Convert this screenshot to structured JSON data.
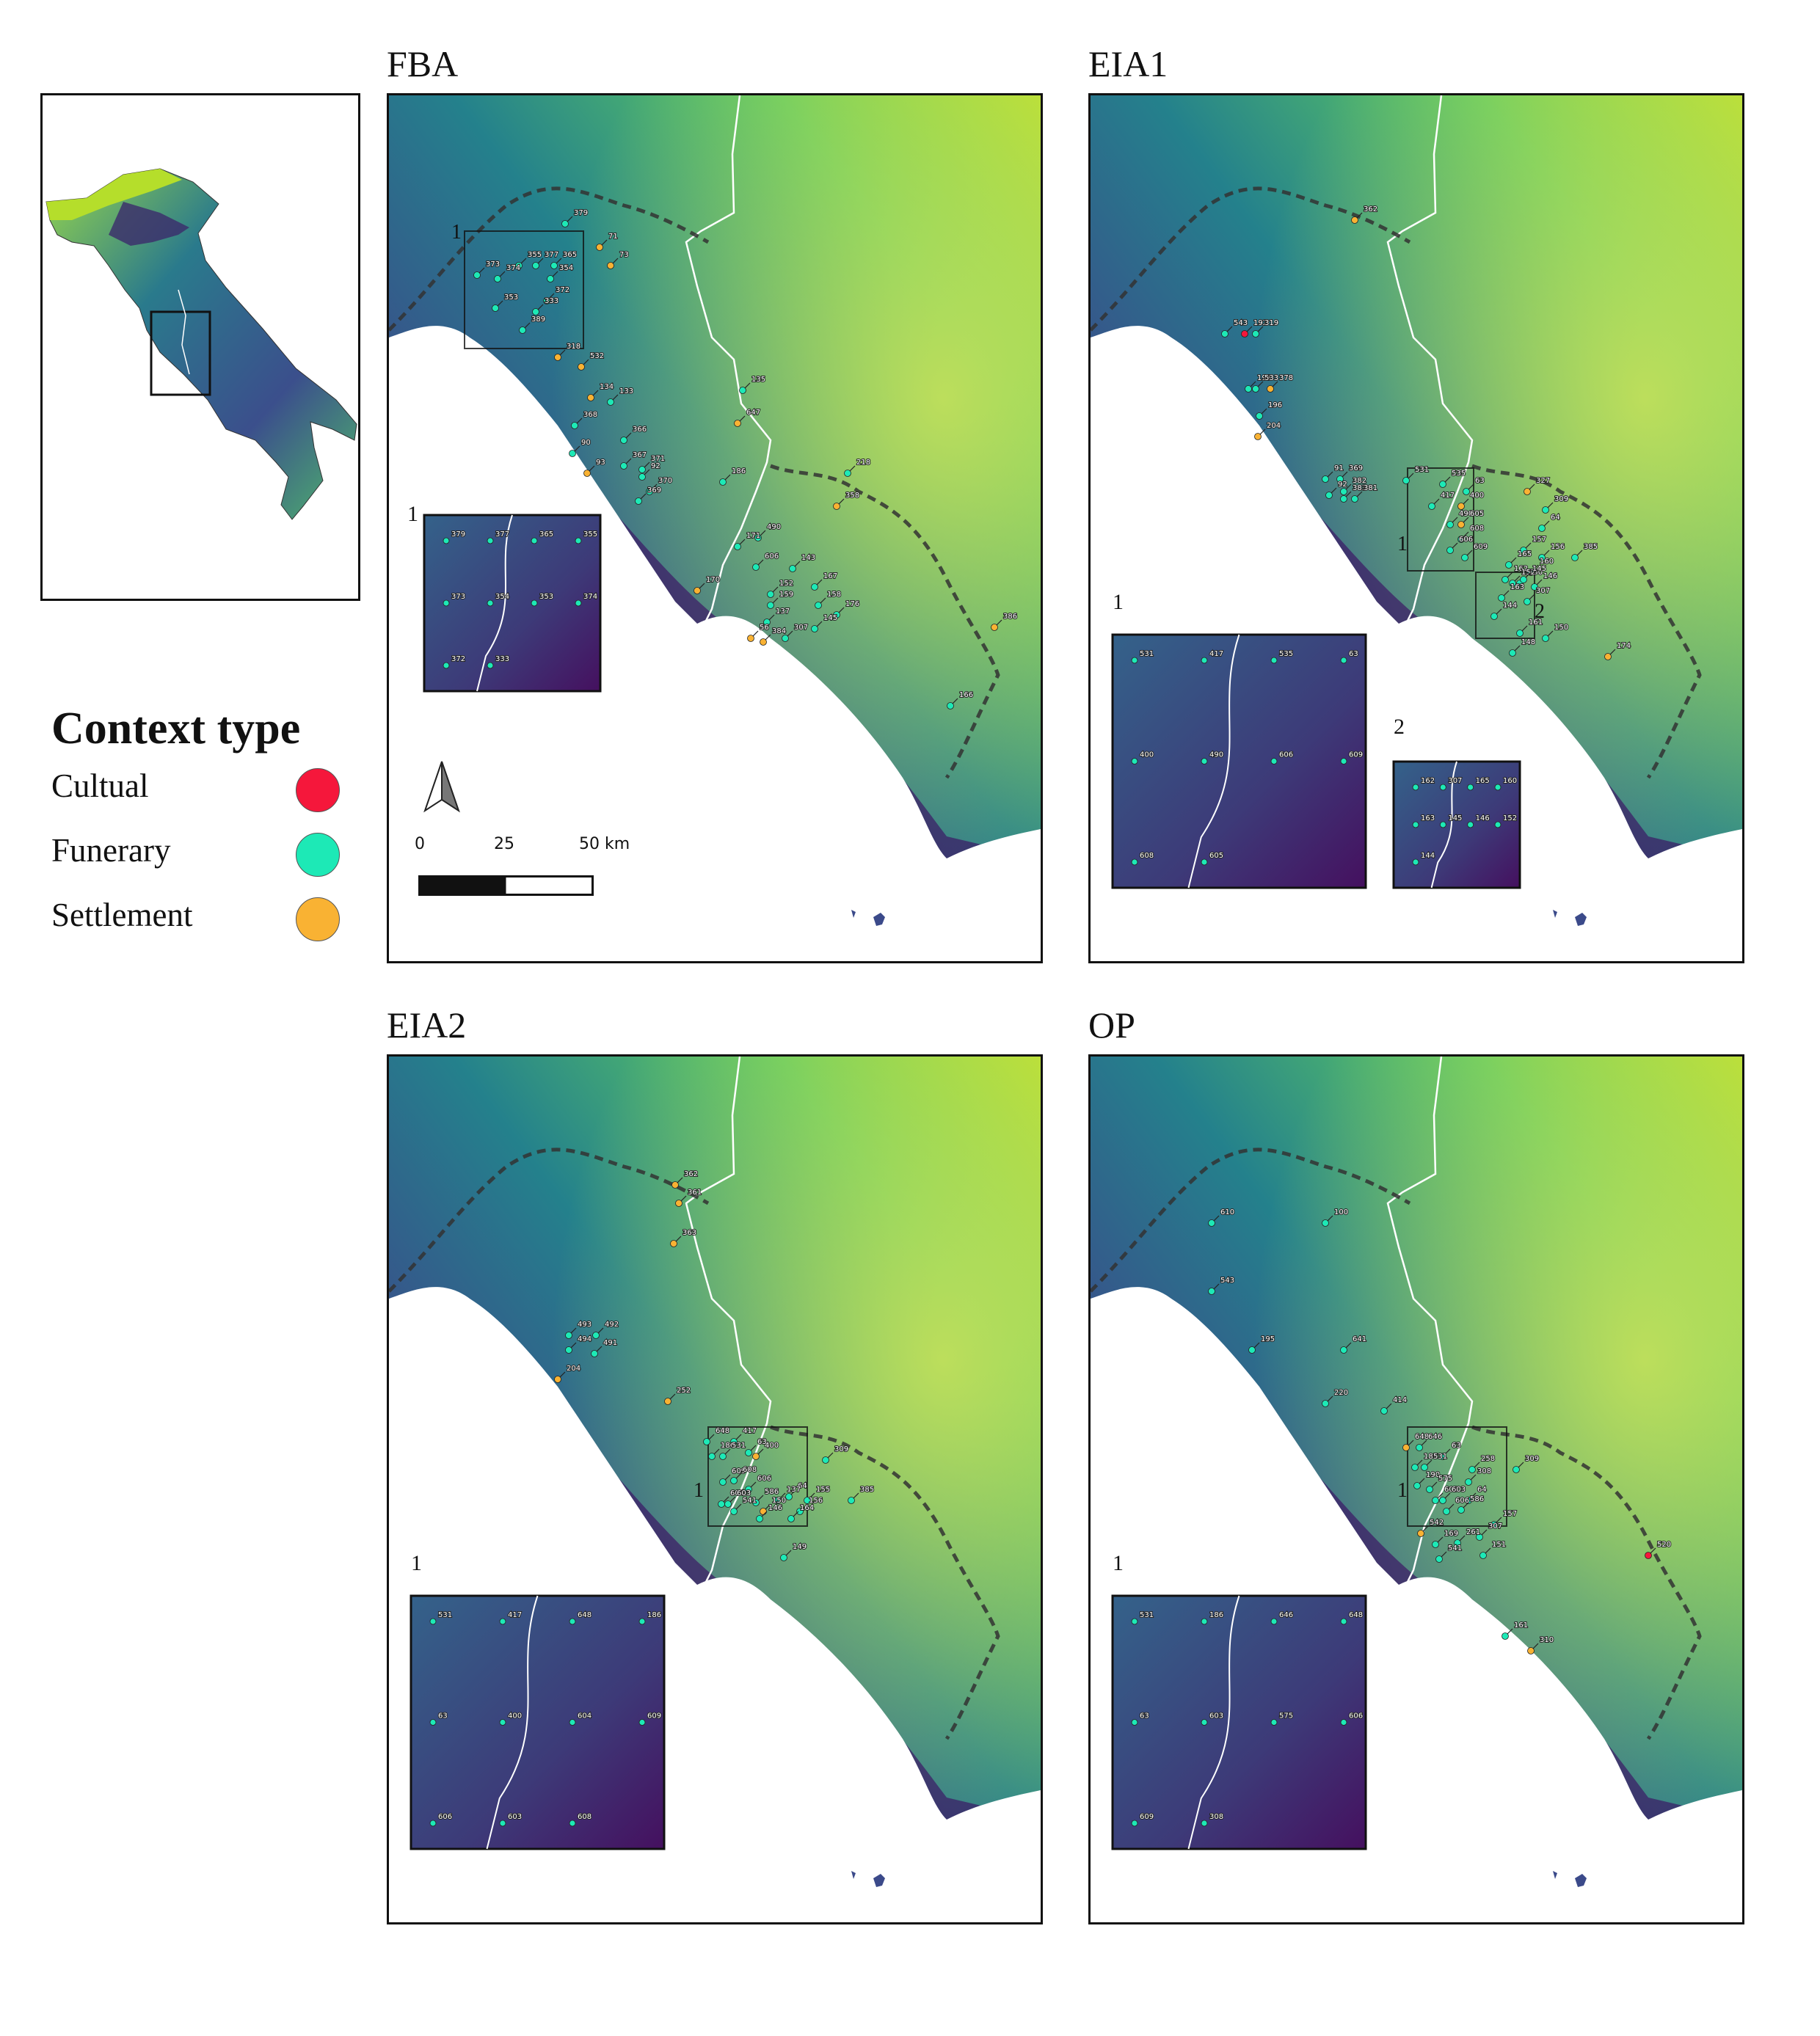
{
  "panels": [
    {
      "id": "fba",
      "title": "FBA",
      "sites": [
        {
          "n": "379",
          "t": "F"
        },
        {
          "n": "71",
          "t": "S"
        },
        {
          "n": "73",
          "t": "S"
        },
        {
          "n": "355",
          "t": "F"
        },
        {
          "n": "377",
          "t": "F"
        },
        {
          "n": "365",
          "t": "F"
        },
        {
          "n": "373",
          "t": "F"
        },
        {
          "n": "374",
          "t": "F"
        },
        {
          "n": "354",
          "t": "F"
        },
        {
          "n": "372",
          "t": "F"
        },
        {
          "n": "353",
          "t": "F"
        },
        {
          "n": "333",
          "t": "F"
        },
        {
          "n": "389",
          "t": "F"
        },
        {
          "n": "318",
          "t": "S"
        },
        {
          "n": "532",
          "t": "S"
        },
        {
          "n": "134",
          "t": "S"
        },
        {
          "n": "133",
          "t": "F"
        },
        {
          "n": "368",
          "t": "F"
        },
        {
          "n": "366",
          "t": "F"
        },
        {
          "n": "90",
          "t": "F"
        },
        {
          "n": "367",
          "t": "F"
        },
        {
          "n": "371",
          "t": "F"
        },
        {
          "n": "92",
          "t": "F"
        },
        {
          "n": "370",
          "t": "F"
        },
        {
          "n": "93",
          "t": "S"
        },
        {
          "n": "369",
          "t": "F"
        },
        {
          "n": "135",
          "t": "F"
        },
        {
          "n": "647",
          "t": "S"
        },
        {
          "n": "218",
          "t": "F"
        },
        {
          "n": "186",
          "t": "F"
        },
        {
          "n": "358",
          "t": "S"
        },
        {
          "n": "490",
          "t": "F"
        },
        {
          "n": "171",
          "t": "F"
        },
        {
          "n": "606",
          "t": "F"
        },
        {
          "n": "143",
          "t": "F"
        },
        {
          "n": "170",
          "t": "S"
        },
        {
          "n": "167",
          "t": "F"
        },
        {
          "n": "152",
          "t": "F"
        },
        {
          "n": "159",
          "t": "F"
        },
        {
          "n": "158",
          "t": "F"
        },
        {
          "n": "137",
          "t": "F"
        },
        {
          "n": "176",
          "t": "F"
        },
        {
          "n": "145",
          "t": "F"
        },
        {
          "n": "56",
          "t": "S"
        },
        {
          "n": "384",
          "t": "S"
        },
        {
          "n": "307",
          "t": "F"
        },
        {
          "n": "386",
          "t": "S"
        },
        {
          "n": "166",
          "t": "F"
        }
      ],
      "insets": [
        {
          "num": "1",
          "labels": [
            "379",
            "377",
            "365",
            "355",
            "373",
            "354",
            "353",
            "374",
            "372",
            "333"
          ]
        }
      ]
    },
    {
      "id": "eia1",
      "title": "EIA1",
      "sites": [
        {
          "n": "362",
          "t": "S"
        },
        {
          "n": "543",
          "t": "F"
        },
        {
          "n": "192",
          "t": "C"
        },
        {
          "n": "319",
          "t": "F"
        },
        {
          "n": "195",
          "t": "F"
        },
        {
          "n": "533",
          "t": "F"
        },
        {
          "n": "378",
          "t": "S"
        },
        {
          "n": "196",
          "t": "F"
        },
        {
          "n": "204",
          "t": "S"
        },
        {
          "n": "91",
          "t": "F"
        },
        {
          "n": "369",
          "t": "F"
        },
        {
          "n": "382",
          "t": "F"
        },
        {
          "n": "92",
          "t": "F"
        },
        {
          "n": "383",
          "t": "F"
        },
        {
          "n": "381",
          "t": "F"
        },
        {
          "n": "531",
          "t": "F"
        },
        {
          "n": "535",
          "t": "F"
        },
        {
          "n": "63",
          "t": "F"
        },
        {
          "n": "417",
          "t": "F"
        },
        {
          "n": "400",
          "t": "S"
        },
        {
          "n": "327",
          "t": "S"
        },
        {
          "n": "309",
          "t": "F"
        },
        {
          "n": "490",
          "t": "F"
        },
        {
          "n": "605",
          "t": "S"
        },
        {
          "n": "64",
          "t": "F"
        },
        {
          "n": "608",
          "t": "F"
        },
        {
          "n": "606",
          "t": "F"
        },
        {
          "n": "609",
          "t": "F"
        },
        {
          "n": "157",
          "t": "F"
        },
        {
          "n": "156",
          "t": "F"
        },
        {
          "n": "385",
          "t": "F"
        },
        {
          "n": "165",
          "t": "F"
        },
        {
          "n": "160",
          "t": "F"
        },
        {
          "n": "150",
          "t": "F"
        },
        {
          "n": "162",
          "t": "F"
        },
        {
          "n": "152",
          "t": "F"
        },
        {
          "n": "145",
          "t": "F"
        },
        {
          "n": "146",
          "t": "F"
        },
        {
          "n": "163",
          "t": "F"
        },
        {
          "n": "307",
          "t": "F"
        },
        {
          "n": "144",
          "t": "F"
        },
        {
          "n": "161",
          "t": "F"
        },
        {
          "n": "150",
          "t": "F"
        },
        {
          "n": "148",
          "t": "F"
        },
        {
          "n": "174",
          "t": "S"
        }
      ],
      "insets": [
        {
          "num": "1",
          "labels": [
            "531",
            "417",
            "535",
            "63",
            "400",
            "490",
            "606",
            "609",
            "608",
            "605"
          ]
        },
        {
          "num": "2",
          "labels": [
            "162",
            "307",
            "165",
            "160",
            "163",
            "145",
            "146",
            "152",
            "144"
          ]
        }
      ]
    },
    {
      "id": "eia2",
      "title": "EIA2",
      "sites": [
        {
          "n": "362",
          "t": "S"
        },
        {
          "n": "361",
          "t": "S"
        },
        {
          "n": "363",
          "t": "S"
        },
        {
          "n": "493",
          "t": "F"
        },
        {
          "n": "492",
          "t": "F"
        },
        {
          "n": "494",
          "t": "F"
        },
        {
          "n": "491",
          "t": "F"
        },
        {
          "n": "204",
          "t": "S"
        },
        {
          "n": "252",
          "t": "S"
        },
        {
          "n": "648",
          "t": "F"
        },
        {
          "n": "417",
          "t": "F"
        },
        {
          "n": "63",
          "t": "F"
        },
        {
          "n": "186",
          "t": "F"
        },
        {
          "n": "531",
          "t": "F"
        },
        {
          "n": "400",
          "t": "S"
        },
        {
          "n": "309",
          "t": "F"
        },
        {
          "n": "609",
          "t": "F"
        },
        {
          "n": "608",
          "t": "F"
        },
        {
          "n": "606",
          "t": "F"
        },
        {
          "n": "64",
          "t": "F"
        },
        {
          "n": "604",
          "t": "F"
        },
        {
          "n": "603",
          "t": "F"
        },
        {
          "n": "586",
          "t": "F"
        },
        {
          "n": "137",
          "t": "F"
        },
        {
          "n": "155",
          "t": "F"
        },
        {
          "n": "385",
          "t": "F"
        },
        {
          "n": "541",
          "t": "F"
        },
        {
          "n": "150",
          "t": "S"
        },
        {
          "n": "156",
          "t": "F"
        },
        {
          "n": "146",
          "t": "F"
        },
        {
          "n": "164",
          "t": "F"
        },
        {
          "n": "149",
          "t": "F"
        }
      ],
      "insets": [
        {
          "num": "1",
          "labels": [
            "531",
            "417",
            "648",
            "186",
            "63",
            "400",
            "604",
            "609",
            "606",
            "603",
            "608"
          ]
        }
      ]
    },
    {
      "id": "op",
      "title": "OP",
      "sites": [
        {
          "n": "610",
          "t": "F"
        },
        {
          "n": "100",
          "t": "F"
        },
        {
          "n": "543",
          "t": "F"
        },
        {
          "n": "195",
          "t": "F"
        },
        {
          "n": "641",
          "t": "F"
        },
        {
          "n": "220",
          "t": "F"
        },
        {
          "n": "414",
          "t": "F"
        },
        {
          "n": "648",
          "t": "S"
        },
        {
          "n": "646",
          "t": "F"
        },
        {
          "n": "63",
          "t": "F"
        },
        {
          "n": "186",
          "t": "F"
        },
        {
          "n": "531",
          "t": "F"
        },
        {
          "n": "258",
          "t": "F"
        },
        {
          "n": "309",
          "t": "F"
        },
        {
          "n": "190",
          "t": "F"
        },
        {
          "n": "308",
          "t": "F"
        },
        {
          "n": "575",
          "t": "F"
        },
        {
          "n": "609",
          "t": "F"
        },
        {
          "n": "603",
          "t": "F"
        },
        {
          "n": "64",
          "t": "F"
        },
        {
          "n": "586",
          "t": "F"
        },
        {
          "n": "606",
          "t": "F"
        },
        {
          "n": "157",
          "t": "F"
        },
        {
          "n": "542",
          "t": "S"
        },
        {
          "n": "307",
          "t": "F"
        },
        {
          "n": "169",
          "t": "F"
        },
        {
          "n": "261",
          "t": "F"
        },
        {
          "n": "151",
          "t": "F"
        },
        {
          "n": "541",
          "t": "F"
        },
        {
          "n": "520",
          "t": "C"
        },
        {
          "n": "161",
          "t": "F"
        },
        {
          "n": "310",
          "t": "S"
        }
      ],
      "insets": [
        {
          "num": "1",
          "labels": [
            "531",
            "186",
            "646",
            "648",
            "63",
            "603",
            "575",
            "606",
            "609",
            "308"
          ]
        }
      ]
    }
  ],
  "legend": {
    "title": "Context type",
    "items": [
      {
        "label": "Cultual",
        "color": "#f5173b"
      },
      {
        "label": "Funerary",
        "color": "#1de9b6"
      },
      {
        "label": "Settlement",
        "color": "#f9b233"
      }
    ]
  },
  "scalebar": {
    "ticks": [
      "0",
      "25",
      "50 km"
    ]
  },
  "colors": {
    "low": "#440154",
    "mid": "#21908d",
    "high": "#b5de2b",
    "border": "#ffffff",
    "dashed": "#333333"
  }
}
